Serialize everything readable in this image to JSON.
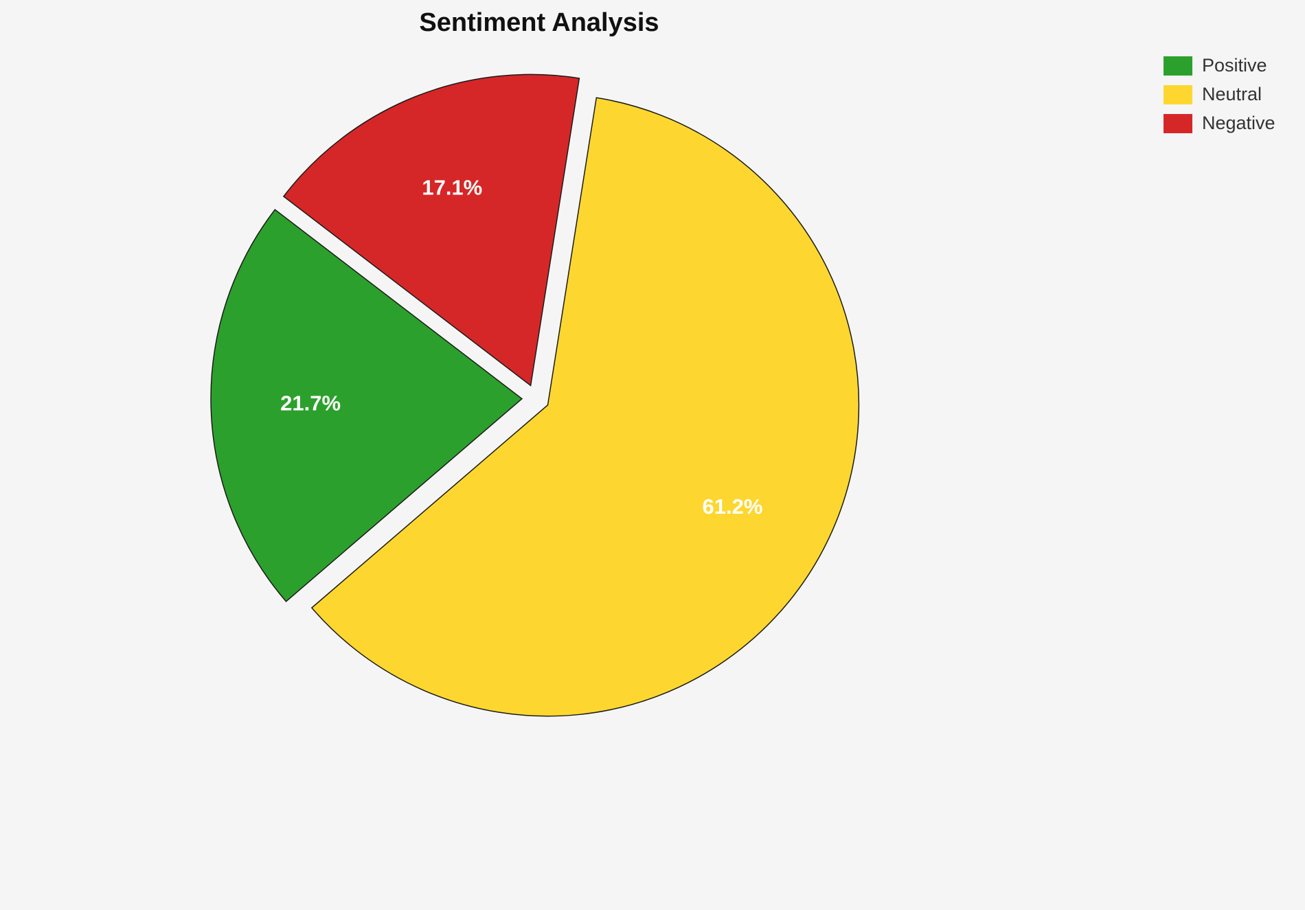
{
  "page": {
    "background_color": "#f5f5f5"
  },
  "chart_data": {
    "type": "pie",
    "title": "Sentiment Analysis",
    "labels": [
      "Positive",
      "Neutral",
      "Negative"
    ],
    "values": [
      21.7,
      61.2,
      17.1
    ],
    "percent_labels": [
      "21.7%",
      "61.2%",
      "17.1%"
    ],
    "colors": [
      "#2ca02c",
      "#fdd730",
      "#d62728"
    ],
    "slice_edge_color": "#1a1a1a",
    "label_text_color": "#ffffff",
    "legend_position": "top-right",
    "direction": "clockwise",
    "start_angle_deg": 9,
    "draw_order": [
      "Neutral",
      "Positive",
      "Negative"
    ],
    "exploded": true
  }
}
